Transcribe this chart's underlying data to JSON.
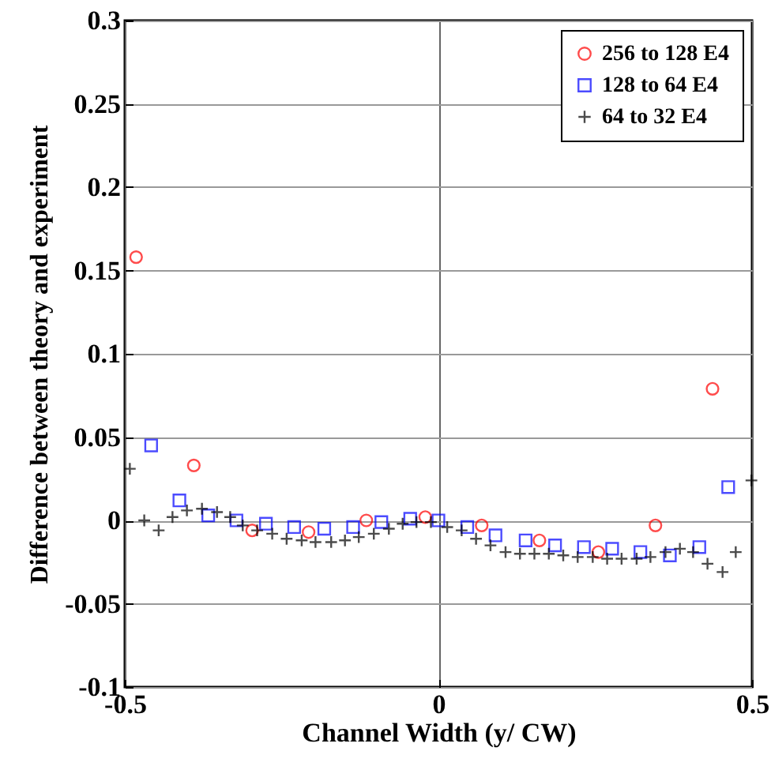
{
  "chart_data": {
    "type": "scatter",
    "xlabel": "Channel Width (y/ CW)",
    "ylabel": "Difference between theory and experiment",
    "xlim": [
      -0.5,
      0.5
    ],
    "xticks": [
      -0.5,
      0,
      0.5
    ],
    "ylim": [
      -0.1,
      0.3
    ],
    "yticks": [
      -0.1,
      -0.05,
      0,
      0.05,
      0.1,
      0.15,
      0.2,
      0.25,
      0.3
    ],
    "grid": true,
    "legend": "top right",
    "series": [
      {
        "name": "256 to 128 E4",
        "color": "#ff0000",
        "marker": "circle",
        "x": [
          -0.482,
          -0.39,
          -0.297,
          -0.207,
          -0.115,
          -0.021,
          0.069,
          0.161,
          0.255,
          0.346,
          0.437
        ],
        "values": [
          0.158,
          0.033,
          -0.006,
          -0.007,
          0.0,
          0.002,
          -0.003,
          -0.012,
          -0.019,
          -0.003,
          0.079
        ]
      },
      {
        "name": "128 to 64 E4",
        "color": "#0000ff",
        "marker": "square",
        "x": [
          -0.458,
          -0.413,
          -0.367,
          -0.322,
          -0.275,
          -0.23,
          -0.182,
          -0.136,
          -0.091,
          -0.045,
          0.0,
          0.046,
          0.091,
          0.139,
          0.186,
          0.232,
          0.277,
          0.322,
          0.369,
          0.416,
          0.462
        ],
        "values": [
          0.045,
          0.012,
          0.003,
          0.0,
          -0.002,
          -0.004,
          -0.005,
          -0.004,
          -0.001,
          0.001,
          0.0,
          -0.004,
          -0.009,
          -0.012,
          -0.015,
          -0.016,
          -0.017,
          -0.019,
          -0.021,
          -0.016,
          0.02
        ]
      },
      {
        "name": "64 to 32 E4",
        "color": "#000000",
        "marker": "cross",
        "x": [
          -0.492,
          -0.469,
          -0.446,
          -0.424,
          -0.401,
          -0.377,
          -0.353,
          -0.332,
          -0.312,
          -0.289,
          -0.265,
          -0.242,
          -0.218,
          -0.196,
          -0.171,
          -0.149,
          -0.127,
          -0.103,
          -0.079,
          -0.057,
          -0.035,
          -0.012,
          0.014,
          0.037,
          0.06,
          0.083,
          0.107,
          0.13,
          0.153,
          0.176,
          0.199,
          0.222,
          0.246,
          0.269,
          0.292,
          0.316,
          0.338,
          0.362,
          0.385,
          0.406,
          0.429,
          0.453,
          0.474,
          0.499
        ],
        "values": [
          0.031,
          0.0,
          -0.006,
          0.002,
          0.006,
          0.007,
          0.005,
          0.002,
          -0.003,
          -0.006,
          -0.008,
          -0.011,
          -0.012,
          -0.013,
          -0.013,
          -0.012,
          -0.01,
          -0.008,
          -0.005,
          -0.002,
          -0.001,
          -0.001,
          -0.004,
          -0.006,
          -0.011,
          -0.015,
          -0.019,
          -0.02,
          -0.02,
          -0.02,
          -0.021,
          -0.022,
          -0.022,
          -0.023,
          -0.023,
          -0.023,
          -0.022,
          -0.019,
          -0.017,
          -0.019,
          -0.026,
          -0.031,
          -0.019,
          0.024
        ]
      }
    ]
  }
}
